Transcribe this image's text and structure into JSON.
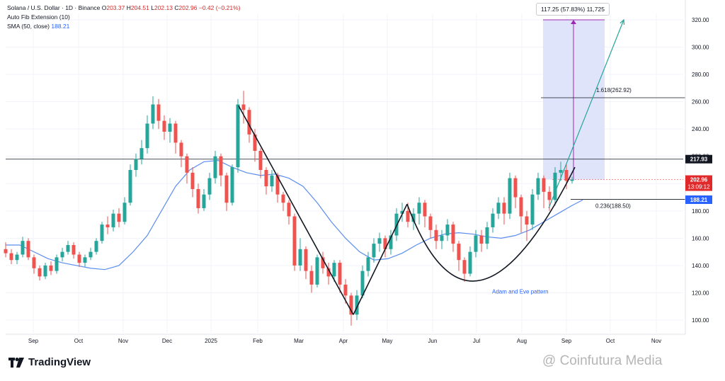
{
  "header": {
    "symbol": "Solana / U.S. Dollar · 1D · Binance",
    "open_label": "O",
    "open": "203.37",
    "high_label": "H",
    "high": "204.51",
    "low_label": "L",
    "low": "202.13",
    "close_label": "C",
    "close": "202.96",
    "change": "−0.42 (−0.21%)",
    "indicator_1": "Auto Fib Extension (10)",
    "indicator_2_name": "SMA (50, close)",
    "indicator_2_value": "188.21"
  },
  "chart_data": {
    "type": "candlestick",
    "y_range": [
      90,
      332
    ],
    "y_ticks": [
      100,
      120,
      140,
      160,
      180,
      200,
      220,
      240,
      260,
      280,
      300,
      320
    ],
    "x_tick_labels": [
      "Sep",
      "Oct",
      "Nov",
      "Dec",
      "2025",
      "Feb",
      "Mar",
      "Apr",
      "May",
      "Jun",
      "Jul",
      "Aug",
      "Sep",
      "Oct",
      "Nov"
    ],
    "price_labels": {
      "resistance": "217.93",
      "last_price": "202.96",
      "countdown": "13:09:12",
      "sma_value": "188.21"
    },
    "fib_levels": [
      {
        "label": "1.618(262.92)",
        "value": 262.92
      },
      {
        "label": "0.236(188.50)",
        "value": 188.5
      }
    ],
    "measure_label": "117.25 (57.83%) 11,725",
    "pattern_label": "Adam and Eve pattern",
    "sma_series": [
      [
        0,
        155
      ],
      [
        20,
        155
      ],
      [
        40,
        150
      ],
      [
        60,
        145
      ],
      [
        80,
        142
      ],
      [
        100,
        140
      ],
      [
        120,
        138
      ],
      [
        140,
        137
      ],
      [
        160,
        140
      ],
      [
        180,
        150
      ],
      [
        200,
        162
      ],
      [
        220,
        180
      ],
      [
        240,
        198
      ],
      [
        260,
        210
      ],
      [
        280,
        216
      ],
      [
        300,
        217
      ],
      [
        320,
        212
      ],
      [
        340,
        208
      ],
      [
        360,
        206
      ],
      [
        380,
        207
      ],
      [
        400,
        204
      ],
      [
        420,
        198
      ],
      [
        440,
        186
      ],
      [
        460,
        172
      ],
      [
        480,
        160
      ],
      [
        500,
        150
      ],
      [
        520,
        144
      ],
      [
        540,
        145
      ],
      [
        560,
        149
      ],
      [
        580,
        155
      ],
      [
        600,
        160
      ],
      [
        620,
        163
      ],
      [
        640,
        164
      ],
      [
        660,
        163
      ],
      [
        680,
        161
      ],
      [
        700,
        160
      ],
      [
        720,
        162
      ],
      [
        740,
        166
      ],
      [
        760,
        172
      ],
      [
        780,
        178
      ],
      [
        800,
        184
      ],
      [
        815,
        188
      ]
    ],
    "trend_lines": [
      {
        "name": "decline",
        "points": [
          [
            337,
            257
          ],
          [
            499,
            104
          ]
        ]
      },
      {
        "name": "adam-rise",
        "points": [
          [
            499,
            104
          ],
          [
            575,
            185
          ]
        ]
      }
    ],
    "eve_curve": {
      "start": [
        575,
        185
      ],
      "control": [
        665,
        60
      ],
      "end": [
        812,
        212
      ]
    },
    "projection_arrow": {
      "from": [
        775,
        182
      ],
      "to": [
        881,
        320
      ]
    },
    "candles": [
      [
        8,
        152,
        149,
        157,
        146
      ],
      [
        16,
        149,
        144,
        152,
        141
      ],
      [
        24,
        144,
        148,
        150,
        141
      ],
      [
        32,
        148,
        158,
        161,
        146
      ],
      [
        40,
        158,
        146,
        160,
        144
      ],
      [
        48,
        146,
        138,
        148,
        134
      ],
      [
        56,
        138,
        132,
        140,
        129
      ],
      [
        64,
        132,
        140,
        142,
        130
      ],
      [
        72,
        140,
        136,
        143,
        133
      ],
      [
        80,
        136,
        146,
        148,
        134
      ],
      [
        88,
        146,
        150,
        153,
        143
      ],
      [
        96,
        150,
        155,
        158,
        148
      ],
      [
        104,
        155,
        148,
        157,
        145
      ],
      [
        112,
        148,
        142,
        150,
        139
      ],
      [
        120,
        142,
        146,
        148,
        139
      ],
      [
        128,
        146,
        150,
        153,
        144
      ],
      [
        136,
        150,
        158,
        160,
        148
      ],
      [
        144,
        158,
        170,
        172,
        156
      ],
      [
        152,
        170,
        168,
        176,
        163
      ],
      [
        160,
        168,
        178,
        181,
        165
      ],
      [
        168,
        178,
        172,
        182,
        168
      ],
      [
        176,
        172,
        186,
        190,
        170
      ],
      [
        184,
        186,
        210,
        214,
        184
      ],
      [
        192,
        210,
        218,
        222,
        205
      ],
      [
        200,
        218,
        226,
        232,
        214
      ],
      [
        208,
        226,
        244,
        250,
        222
      ],
      [
        216,
        244,
        258,
        264,
        240
      ],
      [
        224,
        258,
        246,
        262,
        240
      ],
      [
        232,
        246,
        238,
        250,
        232
      ],
      [
        240,
        238,
        244,
        248,
        230
      ],
      [
        248,
        244,
        230,
        246,
        222
      ],
      [
        256,
        230,
        220,
        232,
        212
      ],
      [
        264,
        220,
        208,
        222,
        200
      ],
      [
        272,
        208,
        196,
        212,
        190
      ],
      [
        280,
        196,
        182,
        200,
        178
      ],
      [
        288,
        182,
        192,
        196,
        180
      ],
      [
        296,
        192,
        204,
        208,
        188
      ],
      [
        304,
        204,
        220,
        224,
        200
      ],
      [
        312,
        220,
        206,
        222,
        198
      ],
      [
        320,
        206,
        186,
        208,
        180
      ],
      [
        328,
        186,
        212,
        214,
        184
      ],
      [
        336,
        212,
        258,
        262,
        208
      ],
      [
        344,
        258,
        254,
        268,
        244
      ],
      [
        352,
        254,
        236,
        256,
        230
      ],
      [
        360,
        236,
        224,
        240,
        216
      ],
      [
        368,
        224,
        210,
        226,
        204
      ],
      [
        376,
        210,
        198,
        212,
        192
      ],
      [
        384,
        198,
        206,
        210,
        194
      ],
      [
        392,
        206,
        192,
        208,
        186
      ],
      [
        400,
        192,
        186,
        194,
        180
      ],
      [
        408,
        186,
        176,
        188,
        170
      ],
      [
        416,
        176,
        140,
        178,
        136
      ],
      [
        424,
        140,
        152,
        160,
        136
      ],
      [
        432,
        152,
        136,
        154,
        130
      ],
      [
        440,
        136,
        126,
        140,
        120
      ],
      [
        448,
        126,
        146,
        148,
        124
      ],
      [
        456,
        146,
        138,
        150,
        134
      ],
      [
        464,
        138,
        132,
        142,
        126
      ],
      [
        472,
        132,
        142,
        144,
        128
      ],
      [
        480,
        142,
        126,
        144,
        120
      ],
      [
        488,
        126,
        118,
        130,
        112
      ],
      [
        496,
        118,
        104,
        120,
        96
      ],
      [
        504,
        104,
        118,
        122,
        100
      ],
      [
        512,
        118,
        136,
        140,
        116
      ],
      [
        520,
        136,
        146,
        150,
        132
      ],
      [
        528,
        146,
        156,
        160,
        142
      ],
      [
        536,
        156,
        160,
        164,
        150
      ],
      [
        544,
        160,
        152,
        162,
        146
      ],
      [
        552,
        152,
        162,
        166,
        148
      ],
      [
        560,
        162,
        178,
        182,
        158
      ],
      [
        568,
        178,
        180,
        186,
        172
      ],
      [
        576,
        180,
        172,
        186,
        168
      ],
      [
        584,
        172,
        178,
        182,
        166
      ],
      [
        592,
        178,
        186,
        190,
        170
      ],
      [
        600,
        186,
        176,
        188,
        168
      ],
      [
        608,
        176,
        166,
        178,
        160
      ],
      [
        616,
        166,
        158,
        170,
        152
      ],
      [
        624,
        158,
        162,
        166,
        152
      ],
      [
        632,
        162,
        170,
        174,
        158
      ],
      [
        640,
        170,
        156,
        172,
        150
      ],
      [
        648,
        156,
        144,
        158,
        136
      ],
      [
        656,
        144,
        134,
        146,
        128
      ],
      [
        664,
        134,
        150,
        154,
        132
      ],
      [
        672,
        150,
        162,
        166,
        146
      ],
      [
        680,
        162,
        156,
        166,
        150
      ],
      [
        688,
        156,
        168,
        172,
        152
      ],
      [
        696,
        168,
        178,
        182,
        164
      ],
      [
        704,
        178,
        186,
        190,
        174
      ],
      [
        712,
        186,
        178,
        190,
        170
      ],
      [
        720,
        178,
        204,
        208,
        174
      ],
      [
        728,
        204,
        190,
        206,
        182
      ],
      [
        736,
        190,
        176,
        192,
        164
      ],
      [
        744,
        176,
        170,
        180,
        158
      ],
      [
        752,
        170,
        192,
        196,
        166
      ],
      [
        760,
        192,
        204,
        208,
        188
      ],
      [
        768,
        204,
        194,
        206,
        182
      ],
      [
        776,
        194,
        188,
        198,
        180
      ],
      [
        784,
        188,
        208,
        212,
        184
      ],
      [
        792,
        208,
        210,
        216,
        202
      ],
      [
        800,
        210,
        202,
        214,
        196
      ],
      [
        808,
        202,
        203,
        205,
        200
      ]
    ]
  },
  "branding": {
    "logo_text": "TradingView",
    "watermark": "@ Coinfutura Media"
  },
  "colors": {
    "bull": "#26a69a",
    "bear": "#ef5350",
    "sma": "#5b8def",
    "resistance_label_bg": "#131722",
    "last_price_bg": "#e0292b",
    "sma_label_bg": "#2962ff",
    "measure_fill": "#d9dffa",
    "measure_line": "#9c27b0",
    "projection": "#26a69a"
  }
}
